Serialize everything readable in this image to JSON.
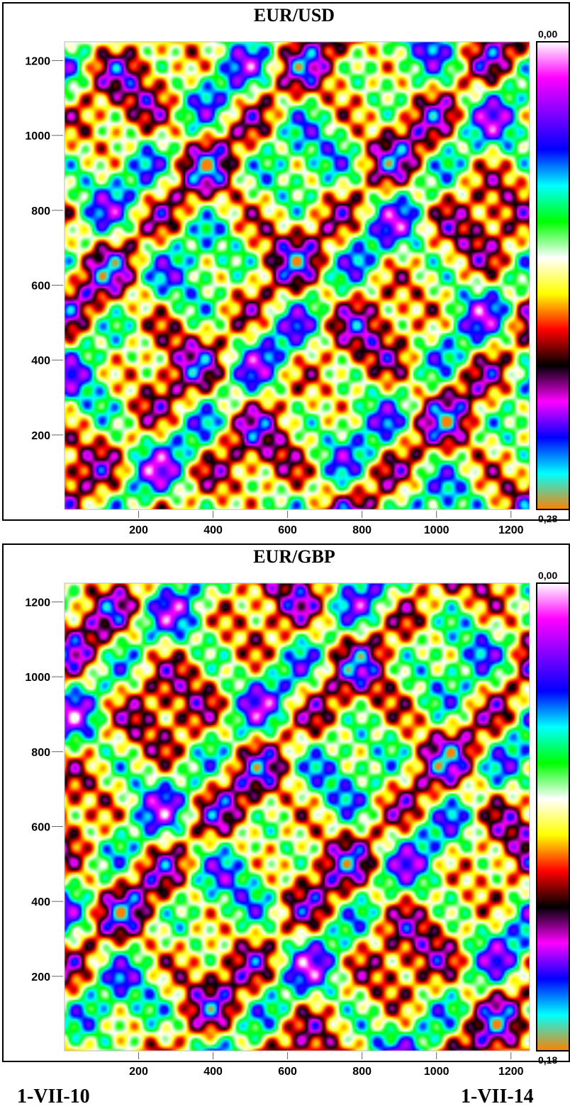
{
  "chart_data": [
    {
      "type": "heatmap",
      "title": "EUR/USD",
      "x_range": [
        1,
        1250
      ],
      "y_range": [
        1,
        1250
      ],
      "x_ticks": [
        200,
        400,
        600,
        800,
        1000,
        1200
      ],
      "y_ticks": [
        200,
        400,
        600,
        800,
        1000,
        1200
      ],
      "color_scale": {
        "min_label": "0,00",
        "max_label": "0,28",
        "min": 0.0,
        "max": 0.28
      },
      "colormap": [
        "#ffffff",
        "#ff00ff",
        "#8000ff",
        "#0000ff",
        "#00ffff",
        "#00ff00",
        "#ffffff",
        "#ffff00",
        "#ff0000",
        "#000000",
        "#ff00ff",
        "#0000ff",
        "#00ffff",
        "#ff8000"
      ],
      "grid": false,
      "legend_placement": "right"
    },
    {
      "type": "heatmap",
      "title": "EUR/GBP",
      "x_range": [
        1,
        1250
      ],
      "y_range": [
        1,
        1250
      ],
      "x_ticks": [
        200,
        400,
        600,
        800,
        1000,
        1200
      ],
      "y_ticks": [
        200,
        400,
        600,
        800,
        1000,
        1200
      ],
      "color_scale": {
        "min_label": "0,00",
        "max_label": "0,18",
        "min": 0.0,
        "max": 0.18
      },
      "colormap": [
        "#ffffff",
        "#ff00ff",
        "#8000ff",
        "#0000ff",
        "#00ffff",
        "#00ff00",
        "#ffffff",
        "#ffff00",
        "#ff0000",
        "#000000",
        "#ff00ff",
        "#0000ff",
        "#00ffff",
        "#ff8000"
      ],
      "grid": false,
      "legend_placement": "right"
    }
  ],
  "footer": {
    "start_label": "1-VII-10",
    "end_label": "1-VII-14"
  }
}
